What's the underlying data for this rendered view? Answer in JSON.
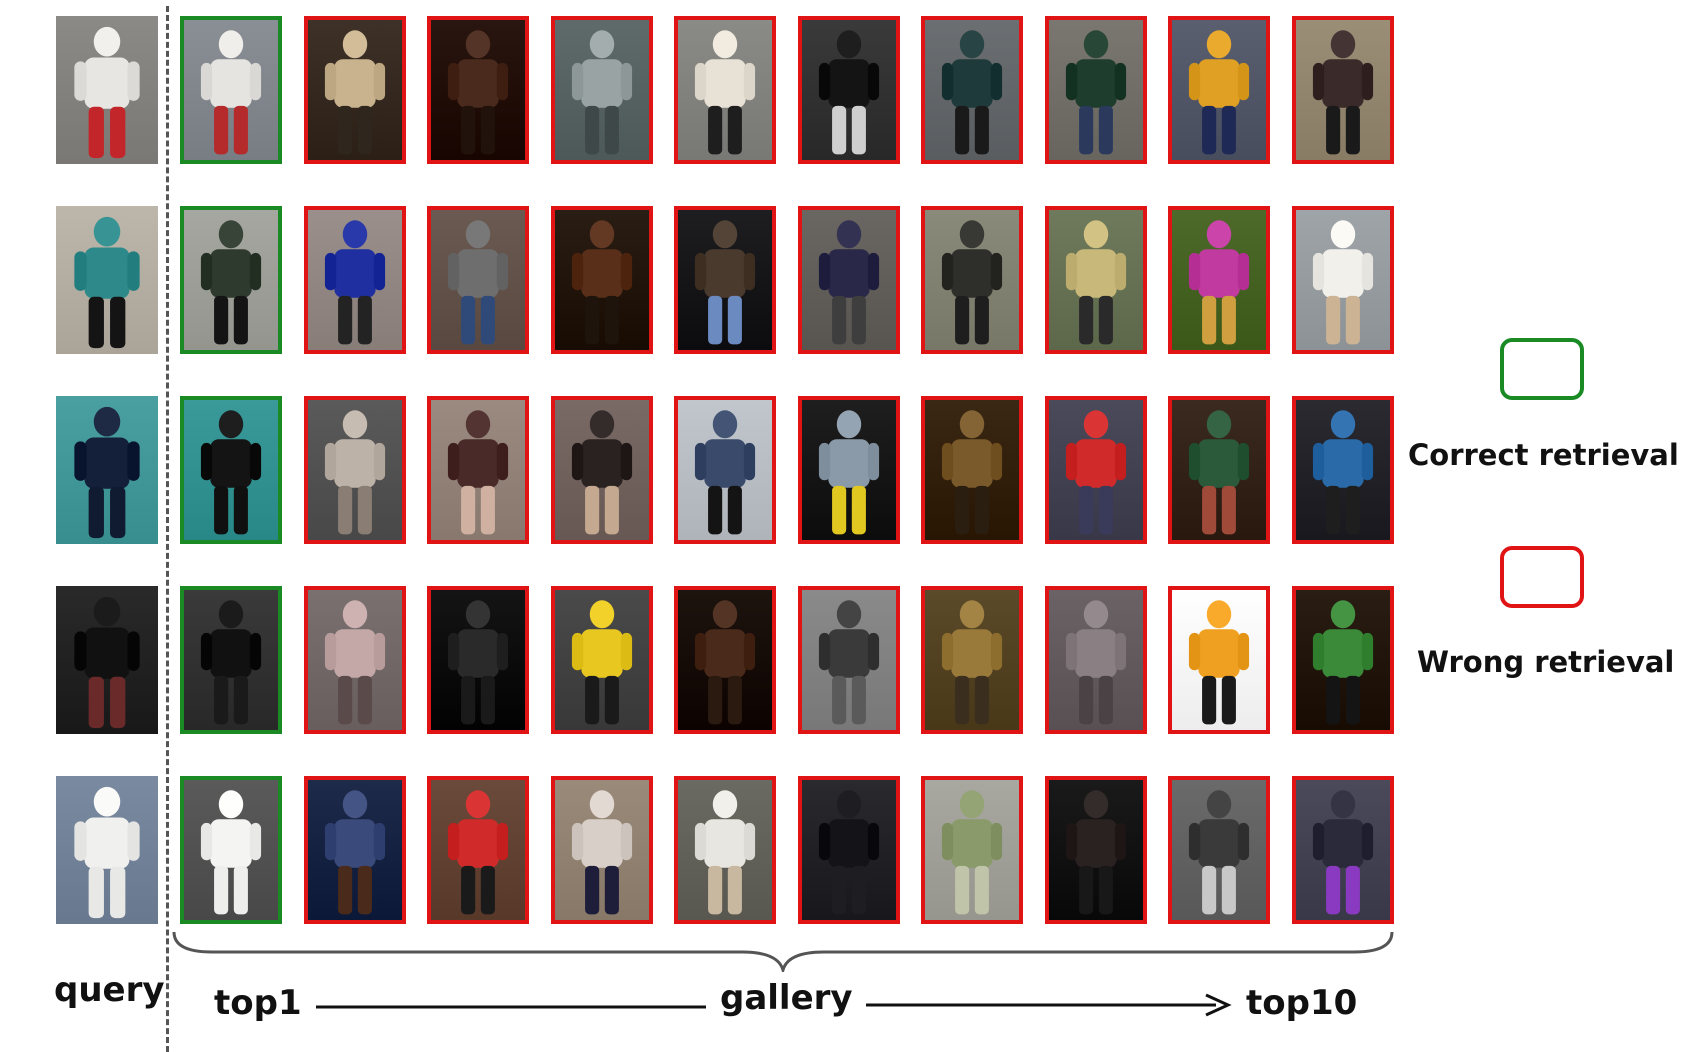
{
  "colors": {
    "correct": "#1a8a24",
    "wrong": "#e01414"
  },
  "labels": {
    "query": "query",
    "top1": "top1",
    "gallery": "gallery",
    "top10": "top10"
  },
  "legend": {
    "correct_label": "Correct retrieval",
    "wrong_label": "Wrong retrieval"
  },
  "rows": [
    {
      "query": {
        "bg": "#8c8a86",
        "fig": "#e8e6e2",
        "legs": "#c2262a"
      },
      "gallery": [
        {
          "result": "correct",
          "bg": "#8a8f96",
          "fig": "#e6e4e0",
          "legs": "#b52a2a"
        },
        {
          "result": "wrong",
          "bg": "#3d3128",
          "fig": "#c9b38f",
          "legs": "#2f261e"
        },
        {
          "result": "wrong",
          "bg": "#2a1610",
          "fig": "#4a2a1c",
          "legs": "#22120c"
        },
        {
          "result": "wrong",
          "bg": "#5f6a6a",
          "fig": "#9aa3a3",
          "legs": "#3e4848"
        },
        {
          "result": "wrong",
          "bg": "#8a8a86",
          "fig": "#e8e2d6",
          "legs": "#1e1e1e"
        },
        {
          "result": "wrong",
          "bg": "#3a3a3a",
          "fig": "#141414",
          "legs": "#cfcfcf"
        },
        {
          "result": "wrong",
          "bg": "#6b6f72",
          "fig": "#1f3a3a",
          "legs": "#1a1a1a"
        },
        {
          "result": "wrong",
          "bg": "#7a7670",
          "fig": "#1e3d2c",
          "legs": "#2b3a5c"
        },
        {
          "result": "wrong",
          "bg": "#5a5f70",
          "fig": "#e0a023",
          "legs": "#1e2a55"
        },
        {
          "result": "wrong",
          "bg": "#9b8e76",
          "fig": "#3a2a2a",
          "legs": "#1a1a1a"
        }
      ]
    },
    {
      "query": {
        "bg": "#bdb6aa",
        "fig": "#2e8a8a",
        "legs": "#141414"
      },
      "gallery": [
        {
          "result": "correct",
          "bg": "#a5a7a0",
          "fig": "#2f3a2f",
          "legs": "#141414"
        },
        {
          "result": "wrong",
          "bg": "#9a8f8a",
          "fig": "#1f2fa0",
          "legs": "#232323"
        },
        {
          "result": "wrong",
          "bg": "#6a5a52",
          "fig": "#6e6e6e",
          "legs": "#2f4a78"
        },
        {
          "result": "wrong",
          "bg": "#2a1e14",
          "fig": "#5a2f1a",
          "legs": "#1e140c"
        },
        {
          "result": "wrong",
          "bg": "#1e1e20",
          "fig": "#4a3a2e",
          "legs": "#6a8ac0"
        },
        {
          "result": "wrong",
          "bg": "#6a6662",
          "fig": "#2a2848",
          "legs": "#3e3e3e"
        },
        {
          "result": "wrong",
          "bg": "#8a8a7a",
          "fig": "#2e2e2a",
          "legs": "#1e1e1e"
        },
        {
          "result": "wrong",
          "bg": "#6f7a5c",
          "fig": "#c8b87a",
          "legs": "#2a2a2a"
        },
        {
          "result": "wrong",
          "bg": "#4d6a2a",
          "fig": "#c03aa0",
          "legs": "#d0a040"
        },
        {
          "result": "wrong",
          "bg": "#9ea4a8",
          "fig": "#f2f0ea",
          "legs": "#cbb394"
        }
      ]
    },
    {
      "query": {
        "bg": "#4aa0a0",
        "fig": "#14203a",
        "legs": "#101a30"
      },
      "gallery": [
        {
          "result": "correct",
          "bg": "#3a9a9a",
          "fig": "#141414",
          "legs": "#101010"
        },
        {
          "result": "wrong",
          "bg": "#5a5a5a",
          "fig": "#bdb2a8",
          "legs": "#8a7e74"
        },
        {
          "result": "wrong",
          "bg": "#9a8a80",
          "fig": "#4a2a28",
          "legs": "#d0b0a0"
        },
        {
          "result": "wrong",
          "bg": "#7a6a66",
          "fig": "#2a2220",
          "legs": "#c4a890"
        },
        {
          "result": "wrong",
          "bg": "#c0c6cc",
          "fig": "#3a4a6a",
          "legs": "#141414"
        },
        {
          "result": "wrong",
          "bg": "#1e1e1e",
          "fig": "#8a9aa8",
          "legs": "#e0c820"
        },
        {
          "result": "wrong",
          "bg": "#3a2814",
          "fig": "#7a5a2a",
          "legs": "#2a1e10"
        },
        {
          "result": "wrong",
          "bg": "#4a4a5a",
          "fig": "#d02a2a",
          "legs": "#3a3a5a"
        },
        {
          "result": "wrong",
          "bg": "#3a2a20",
          "fig": "#2a5a3a",
          "legs": "#a04a3a"
        },
        {
          "result": "wrong",
          "bg": "#2a2a30",
          "fig": "#2a6aa8",
          "legs": "#1e1e1e"
        }
      ]
    },
    {
      "query": {
        "bg": "#2a2a2a",
        "fig": "#111111",
        "legs": "#6a2a2a"
      },
      "gallery": [
        {
          "result": "correct",
          "bg": "#3a3a3a",
          "fig": "#111111",
          "legs": "#1a1a1a"
        },
        {
          "result": "wrong",
          "bg": "#7a7070",
          "fig": "#c4a8a8",
          "legs": "#5a4a4a"
        },
        {
          "result": "wrong",
          "bg": "#141414",
          "fig": "#2a2a2a",
          "legs": "#1a1a1a"
        },
        {
          "result": "wrong",
          "bg": "#4a4a4a",
          "fig": "#e8c820",
          "legs": "#1a1a1a"
        },
        {
          "result": "wrong",
          "bg": "#1e140e",
          "fig": "#4a2a1a",
          "legs": "#2a1a10"
        },
        {
          "result": "wrong",
          "bg": "#8a8a8a",
          "fig": "#3a3a3a",
          "legs": "#5a5a5a"
        },
        {
          "result": "wrong",
          "bg": "#5a4a2a",
          "fig": "#9a7a3a",
          "legs": "#3a2e1e"
        },
        {
          "result": "wrong",
          "bg": "#6a6264",
          "fig": "#8a8084",
          "legs": "#4a4244"
        },
        {
          "result": "wrong",
          "bg": "#ffffff",
          "fig": "#f0a020",
          "legs": "#1a1a1a"
        },
        {
          "result": "wrong",
          "bg": "#2a1e14",
          "fig": "#3a8a3a",
          "legs": "#141414"
        }
      ]
    },
    {
      "query": {
        "bg": "#7a8aa0",
        "fig": "#f0f0ee",
        "legs": "#e8e8e6"
      },
      "gallery": [
        {
          "result": "correct",
          "bg": "#5a5a5a",
          "fig": "#f4f4f2",
          "legs": "#eeeeec"
        },
        {
          "result": "wrong",
          "bg": "#1e2a4a",
          "fig": "#3a4a7a",
          "legs": "#4a2a1a"
        },
        {
          "result": "wrong",
          "bg": "#6a4a3a",
          "fig": "#d02a2a",
          "legs": "#1a1a1a"
        },
        {
          "result": "wrong",
          "bg": "#9a8a7a",
          "fig": "#d8d0c8",
          "legs": "#1e1e3a"
        },
        {
          "result": "wrong",
          "bg": "#6a6a62",
          "fig": "#e8e6e0",
          "legs": "#c8b8a0"
        },
        {
          "result": "wrong",
          "bg": "#2a2a2e",
          "fig": "#141418",
          "legs": "#1e1e22"
        },
        {
          "result": "wrong",
          "bg": "#a8a8a0",
          "fig": "#8a9a6a",
          "legs": "#c0c4a8"
        },
        {
          "result": "wrong",
          "bg": "#1a1a1a",
          "fig": "#2a2220",
          "legs": "#181818"
        },
        {
          "result": "wrong",
          "bg": "#6a6a6a",
          "fig": "#3a3a3a",
          "legs": "#c8c8c8"
        },
        {
          "result": "wrong",
          "bg": "#4a4a5a",
          "fig": "#2a2a3a",
          "legs": "#8a3ac0"
        }
      ]
    }
  ]
}
